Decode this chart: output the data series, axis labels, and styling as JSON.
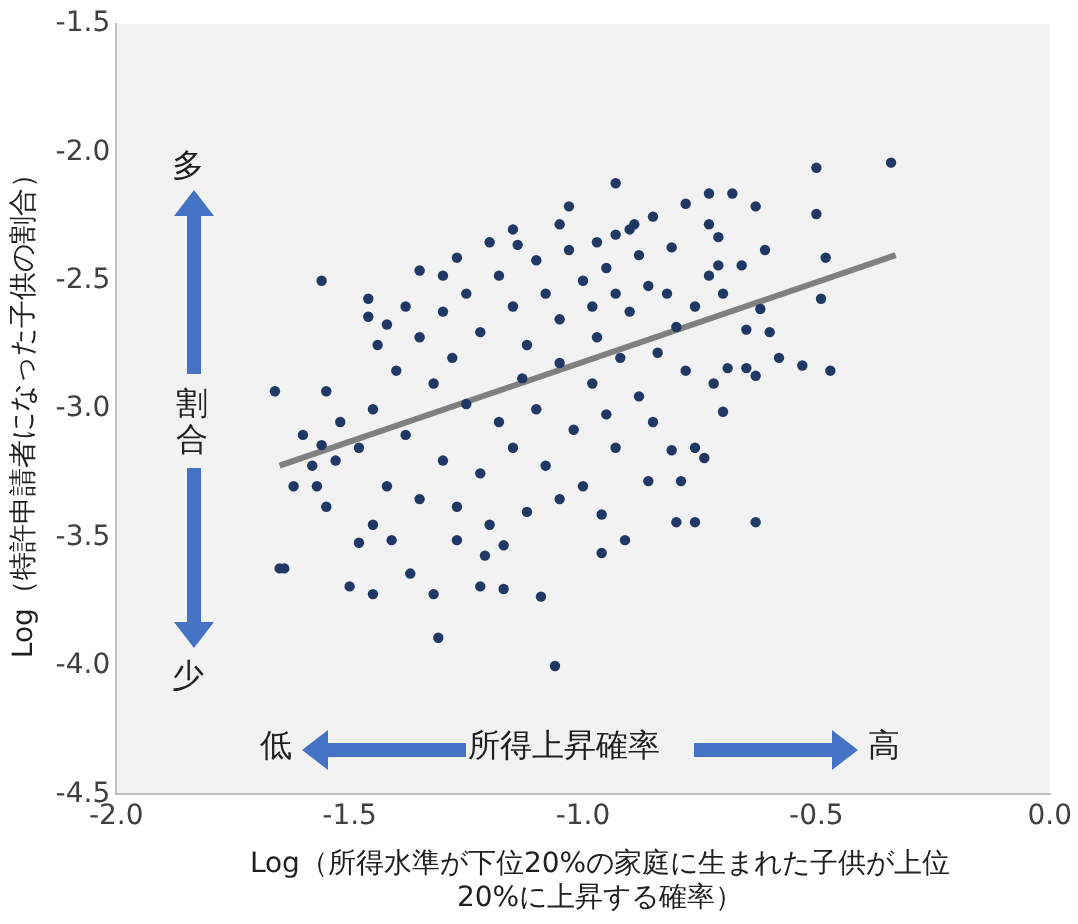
{
  "chart_data": {
    "type": "scatter",
    "xlabel": "Log（所得水準が下位20%の家庭に生まれた子供が上位20%に上昇する確率）",
    "ylabel": "Log（特許申請者になった子供の割合）",
    "xlim": [
      -2,
      0
    ],
    "ylim": [
      -4.5,
      -1.5
    ],
    "xticks": [
      {
        "value": -2,
        "label": "-2.0"
      },
      -1.5,
      {
        "value": -1,
        "label": "-1.0"
      },
      -0.5,
      {
        "value": 0,
        "label": "0.0"
      }
    ],
    "yticks": [
      -4.5,
      {
        "value": -4,
        "label": "-4.0"
      },
      -3.5,
      {
        "value": -3,
        "label": "-3.0"
      },
      -2.5,
      {
        "value": -2,
        "label": "-2.0"
      },
      -1.5
    ],
    "grid": false,
    "legend": false,
    "marker": "circle",
    "annotations": [
      "多",
      "割合",
      "少",
      "低",
      "所得上昇確率",
      "高"
    ],
    "series": [
      {
        "color": "#1f3864",
        "x": [
          -0.34,
          -0.5,
          -0.5,
          -0.48,
          -0.49,
          -0.47,
          -0.53,
          -0.58,
          -0.63,
          -0.65,
          -0.63,
          -0.76,
          -0.8,
          -0.6,
          -0.65,
          -0.62,
          -0.61,
          -0.63,
          -0.68,
          -0.73,
          -0.78,
          -0.93,
          -0.7,
          -0.74,
          -0.76,
          -0.81,
          -0.79,
          -0.86,
          -0.91,
          -0.96,
          -0.96,
          -0.72,
          -0.69,
          -0.66,
          -0.71,
          -0.73,
          -0.71,
          -0.73,
          -0.81,
          -0.85,
          -0.89,
          -0.93,
          -1.56,
          -1.66,
          -1.65,
          -1.64,
          -1.5,
          -1.45,
          -1.31,
          -1.06,
          -1.37,
          -1.32,
          -1.48,
          -1.41,
          -1.27,
          -1.22,
          -1.17,
          -1.09,
          -1.17,
          -1.21,
          -1.57,
          -1.53,
          -1.56,
          -1.55,
          -1.46,
          -1.46,
          -1.42,
          -1.35,
          -1.27,
          -1.14,
          -1.03,
          -1.3,
          -1.25,
          -1.22,
          -1.18,
          -1.15,
          -1.12,
          -1.1,
          -1.08,
          -1.05,
          -1.03,
          -1.0,
          -0.98,
          -0.97,
          -0.95,
          -0.93,
          -0.9,
          -0.88,
          -0.86,
          -1.2,
          -1.13,
          -1.05,
          -0.98,
          -0.92,
          -1.28,
          -1.35,
          -1.32,
          -1.25,
          -1.18,
          -1.1,
          -1.02,
          -0.95,
          -0.88,
          -1.4,
          -1.45,
          -1.38,
          -1.3,
          -1.22,
          -1.15,
          -1.08,
          -1.0,
          -1.48,
          -1.42,
          -1.35,
          -1.27,
          -1.12,
          -1.05,
          -1.52,
          -1.44,
          -1.38,
          -1.3,
          -1.15,
          -1.05,
          -0.97,
          -0.9,
          -0.82,
          -0.8,
          -0.84,
          -0.78,
          -0.76,
          -0.7,
          -1.58,
          -1.6,
          -1.55,
          -1.45,
          -1.2,
          -0.93,
          -0.85,
          -1.62
        ],
        "values": [
          -2.04,
          -2.06,
          -2.24,
          -2.41,
          -2.57,
          -2.85,
          -2.83,
          -2.8,
          -2.87,
          -2.84,
          -3.44,
          -3.44,
          -3.44,
          -2.7,
          -2.69,
          -2.61,
          -2.38,
          -2.21,
          -2.16,
          -2.16,
          -2.2,
          -2.12,
          -3.01,
          -3.19,
          -3.15,
          -3.16,
          -3.28,
          -3.28,
          -3.51,
          -3.56,
          -3.41,
          -2.9,
          -2.84,
          -2.44,
          -2.44,
          -2.48,
          -2.33,
          -2.28,
          -2.37,
          -2.25,
          -2.28,
          -2.32,
          -2.5,
          -2.93,
          -3.62,
          -3.62,
          -3.69,
          -3.72,
          -3.89,
          -4.0,
          -3.64,
          -3.72,
          -3.52,
          -3.51,
          -3.51,
          -3.69,
          -3.7,
          -3.73,
          -3.53,
          -3.57,
          -3.3,
          -3.2,
          -3.14,
          -2.93,
          -2.57,
          -2.64,
          -2.67,
          -2.46,
          -2.41,
          -2.36,
          -2.21,
          -2.62,
          -2.55,
          -2.7,
          -2.48,
          -2.6,
          -2.75,
          -2.42,
          -2.55,
          -2.65,
          -2.38,
          -2.5,
          -2.6,
          -2.72,
          -2.45,
          -2.55,
          -2.62,
          -2.4,
          -2.52,
          -2.35,
          -2.88,
          -2.82,
          -2.9,
          -2.8,
          -2.8,
          -2.72,
          -2.9,
          -2.98,
          -3.05,
          -3.0,
          -3.08,
          -3.02,
          -2.95,
          -2.85,
          -3.0,
          -3.1,
          -3.2,
          -3.25,
          -3.15,
          -3.22,
          -3.3,
          -3.15,
          -3.3,
          -3.35,
          -3.38,
          -3.4,
          -3.35,
          -3.05,
          -2.75,
          -2.6,
          -2.48,
          -2.3,
          -2.28,
          -2.35,
          -2.3,
          -2.55,
          -2.68,
          -2.78,
          -2.85,
          -2.6,
          -2.55,
          -3.22,
          -3.1,
          -3.38,
          -3.45,
          -3.45,
          -3.15,
          -3.05,
          -3.3
        ]
      },
      {
        "type": "line",
        "color": "#808080",
        "marker": "none",
        "x": [
          -1.65,
          -0.33
        ],
        "values": [
          -3.22,
          -2.4
        ]
      }
    ]
  }
}
